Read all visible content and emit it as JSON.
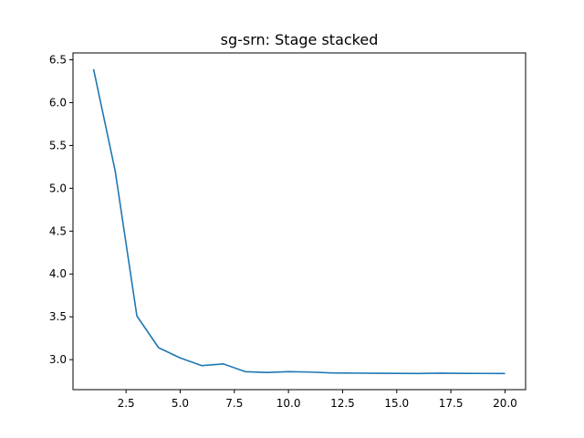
{
  "chart_data": {
    "type": "line",
    "title": "sg-srn: Stage stacked",
    "xlabel": "",
    "ylabel": "",
    "xlim": [
      0.05,
      20.95
    ],
    "ylim": [
      2.65,
      6.58
    ],
    "x_ticks": [
      2.5,
      5.0,
      7.5,
      10.0,
      12.5,
      15.0,
      17.5,
      20.0
    ],
    "x_tick_labels": [
      "2.5",
      "5.0",
      "7.5",
      "10.0",
      "12.5",
      "15.0",
      "17.5",
      "20.0"
    ],
    "y_ticks": [
      3.0,
      3.5,
      4.0,
      4.5,
      5.0,
      5.5,
      6.0,
      6.5
    ],
    "y_tick_labels": [
      "3.0",
      "3.5",
      "4.0",
      "4.5",
      "5.0",
      "5.5",
      "6.0",
      "6.5"
    ],
    "grid": false,
    "series": [
      {
        "color": "#1f77b4",
        "x": [
          1,
          2,
          3,
          4,
          5,
          6,
          7,
          8,
          9,
          10,
          11,
          12,
          13,
          14,
          15,
          16,
          17,
          18,
          19,
          20
        ],
        "y": [
          6.39,
          5.2,
          3.51,
          3.14,
          3.02,
          2.93,
          2.95,
          2.86,
          2.85,
          2.86,
          2.855,
          2.845,
          2.843,
          2.841,
          2.84,
          2.838,
          2.842,
          2.84,
          2.839,
          2.838
        ]
      }
    ]
  }
}
